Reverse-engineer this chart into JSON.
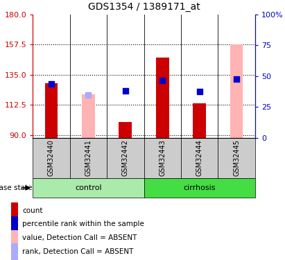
{
  "title": "GDS1354 / 1389171_at",
  "samples": [
    "GSM32440",
    "GSM32441",
    "GSM32442",
    "GSM32443",
    "GSM32444",
    "GSM32445"
  ],
  "groups": [
    "control",
    "control",
    "control",
    "cirrhosis",
    "cirrhosis",
    "cirrhosis"
  ],
  "ylim_left": [
    88,
    180
  ],
  "ylim_right": [
    0,
    100
  ],
  "yticks_left": [
    90,
    112.5,
    135,
    157.5,
    180
  ],
  "yticks_right": [
    0,
    25,
    50,
    75,
    100
  ],
  "red_bar_values": [
    128.5,
    null,
    100.0,
    148.0,
    113.5,
    null
  ],
  "pink_bar_values": [
    null,
    120.5,
    null,
    null,
    null,
    157.5
  ],
  "blue_square_values": [
    128.0,
    null,
    123.0,
    130.5,
    122.5,
    132.0
  ],
  "light_blue_square_values": [
    null,
    120.0,
    null,
    null,
    null,
    null
  ],
  "red_bar_color": "#cc0000",
  "pink_bar_color": "#ffb3b3",
  "blue_sq_color": "#0000cc",
  "light_blue_sq_color": "#aaaaff",
  "control_color": "#aaeaaa",
  "cirrhosis_color": "#44dd44",
  "label_color_left": "#cc0000",
  "label_color_right": "#0000cc",
  "dotted_line_color": "black",
  "bar_width": 0.35,
  "sq_size": 28,
  "legend_labels": [
    "count",
    "percentile rank within the sample",
    "value, Detection Call = ABSENT",
    "rank, Detection Call = ABSENT"
  ],
  "legend_colors": [
    "#cc0000",
    "#0000cc",
    "#ffb3b3",
    "#aaaaff"
  ]
}
